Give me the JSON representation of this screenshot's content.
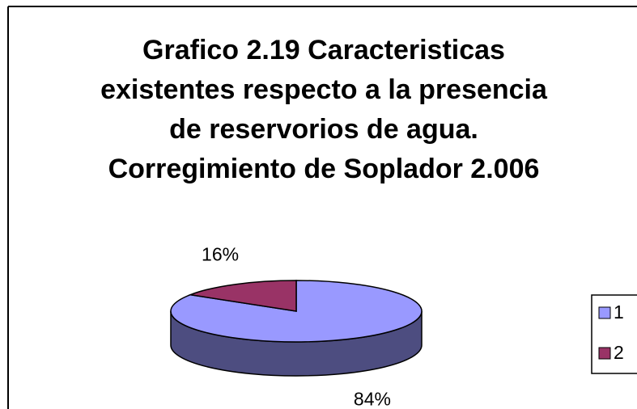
{
  "chart_data": {
    "type": "pie",
    "title": "Grafico 2.19 Caracteristicas existentes respecto a la presencia de reservorios de agua. Corregimiento de Soplador 2.006",
    "categories": [
      "1",
      "2"
    ],
    "values": [
      84,
      16
    ],
    "value_labels": [
      "84%",
      "16%"
    ],
    "colors": [
      "#9999ff",
      "#993366"
    ],
    "legend": "right"
  }
}
